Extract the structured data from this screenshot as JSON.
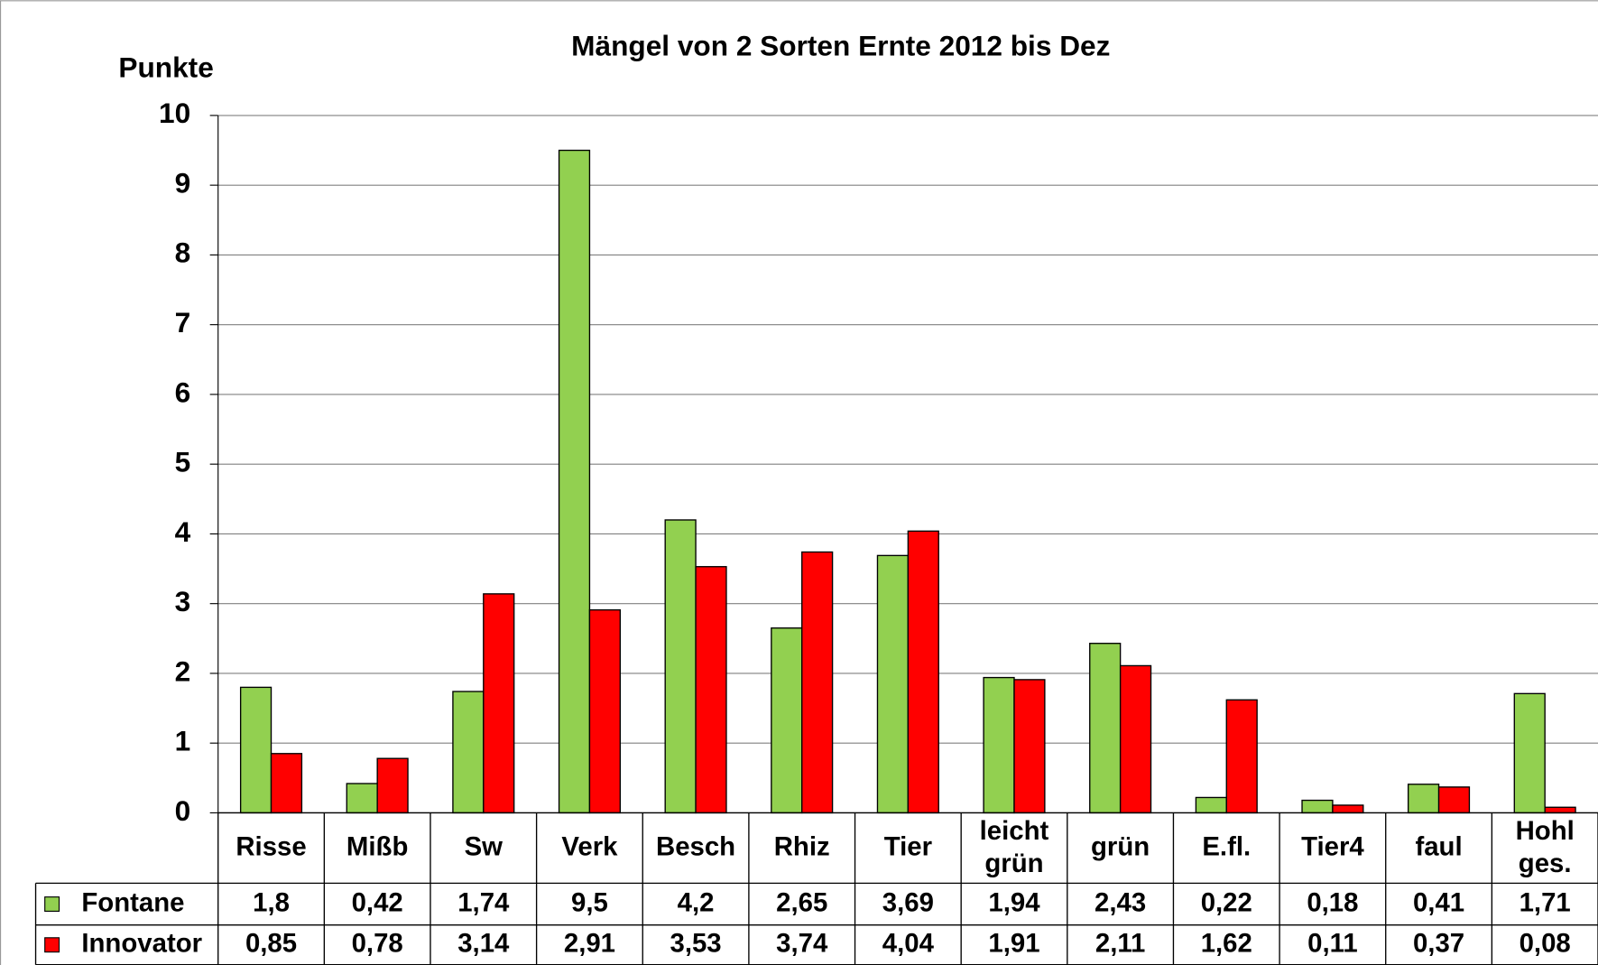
{
  "chart_data": {
    "type": "bar",
    "title": "Mängel von 2 Sorten Ernte 2012 bis Dez",
    "y_label": "Punkte",
    "categories": [
      "Risse",
      "Mißb",
      "Sw",
      "Verk",
      "Besch",
      "Rhiz",
      "Tier",
      "leicht grün",
      "grün",
      "E.fl.",
      "Tier4",
      "faul",
      "Hohl ges."
    ],
    "series": [
      {
        "name": "Fontane",
        "color": "#92d050",
        "values": [
          1.8,
          0.42,
          1.74,
          9.5,
          4.2,
          2.65,
          3.69,
          1.94,
          2.43,
          0.22,
          0.18,
          0.41,
          1.71
        ],
        "value_labels": [
          "1,8",
          "0,42",
          "1,74",
          "9,5",
          "4,2",
          "2,65",
          "3,69",
          "1,94",
          "2,43",
          "0,22",
          "0,18",
          "0,41",
          "1,71"
        ]
      },
      {
        "name": "Innovator",
        "color": "#ff0000",
        "values": [
          0.85,
          0.78,
          3.14,
          2.91,
          3.53,
          3.74,
          4.04,
          1.91,
          2.11,
          1.62,
          0.11,
          0.37,
          0.08
        ],
        "value_labels": [
          "0,85",
          "0,78",
          "3,14",
          "2,91",
          "3,53",
          "3,74",
          "4,04",
          "1,91",
          "2,11",
          "1,62",
          "0,11",
          "0,37",
          "0,08"
        ]
      }
    ],
    "ylim": [
      0,
      10
    ],
    "yticks": [
      0,
      1,
      2,
      3,
      4,
      5,
      6,
      7,
      8,
      9,
      10
    ],
    "grid": true
  }
}
